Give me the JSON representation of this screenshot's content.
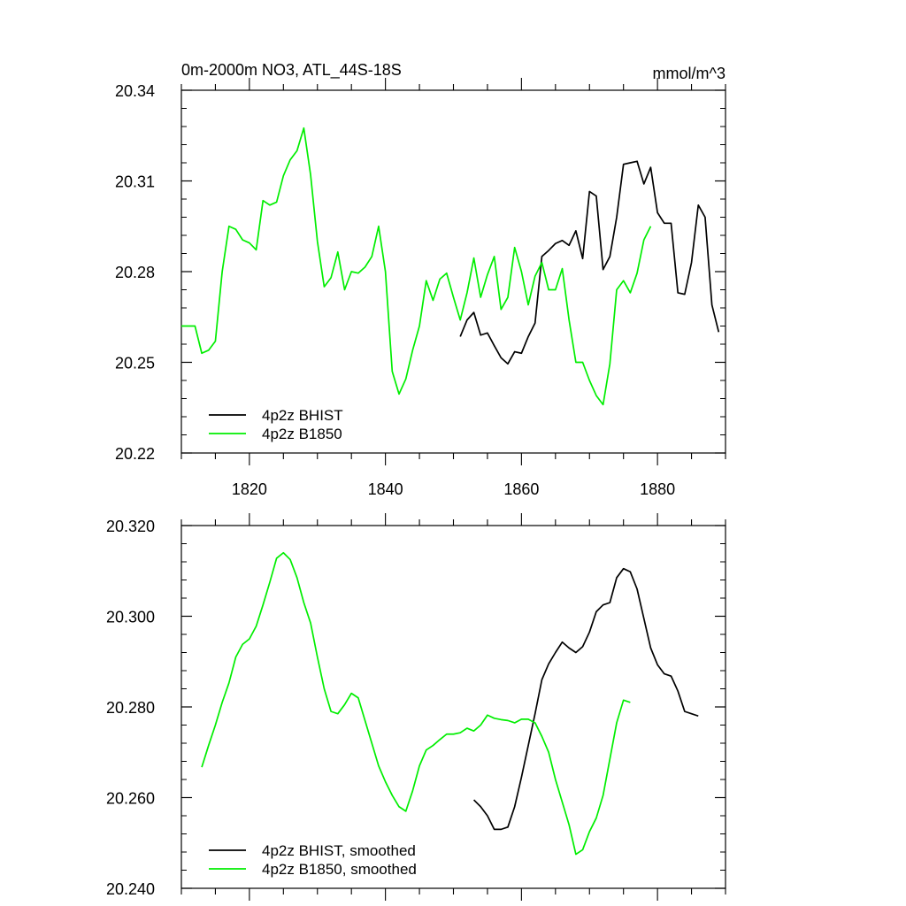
{
  "chart_data": [
    {
      "type": "line",
      "title": "0m-2000m NO3, ATL_44S-18S",
      "units": "mmol/m^3",
      "xlim": [
        1810,
        1890
      ],
      "ylim": [
        20.22,
        20.34
      ],
      "yticks": [
        "20.22",
        "20.25",
        "20.28",
        "20.31",
        "20.34"
      ],
      "xticks": [
        "1820",
        "1840",
        "1860",
        "1880"
      ],
      "legend_position": "bottom-left",
      "series": [
        {
          "name": "4p2z BHIST",
          "color": "#000000",
          "x": [
            1851,
            1852,
            1853,
            1854,
            1855,
            1856,
            1857,
            1858,
            1859,
            1860,
            1861,
            1862,
            1863,
            1864,
            1865,
            1866,
            1867,
            1868,
            1869,
            1870,
            1871,
            1872,
            1873,
            1874,
            1875,
            1876,
            1877,
            1878,
            1879,
            1880,
            1881,
            1882,
            1883,
            1884,
            1885,
            1886,
            1887,
            1888,
            1889
          ],
          "values": [
            20.2585,
            20.264,
            20.2665,
            20.259,
            20.2597,
            20.2555,
            20.2515,
            20.2495,
            20.2535,
            20.253,
            20.2585,
            20.263,
            20.285,
            20.287,
            20.2893,
            20.2903,
            20.2887,
            20.2935,
            20.2843,
            20.3065,
            20.305,
            20.2807,
            20.285,
            20.298,
            20.3155,
            20.316,
            20.3165,
            20.309,
            20.3145,
            20.2995,
            20.296,
            20.296,
            20.273,
            20.2725,
            20.283,
            20.302,
            20.298,
            20.269,
            20.26
          ]
        },
        {
          "name": "4p2z B1850",
          "color": "#00ee00",
          "x": [
            1810,
            1811,
            1812,
            1813,
            1814,
            1815,
            1816,
            1817,
            1818,
            1819,
            1820,
            1821,
            1822,
            1823,
            1824,
            1825,
            1826,
            1827,
            1828,
            1829,
            1830,
            1831,
            1832,
            1833,
            1834,
            1835,
            1836,
            1837,
            1838,
            1839,
            1840,
            1841,
            1842,
            1843,
            1844,
            1845,
            1846,
            1847,
            1848,
            1849,
            1850,
            1851,
            1852,
            1853,
            1854,
            1855,
            1856,
            1857,
            1858,
            1859,
            1860,
            1861,
            1862,
            1863,
            1864,
            1865,
            1866,
            1867,
            1868,
            1869,
            1870,
            1871,
            1872,
            1873,
            1874,
            1875,
            1876,
            1877,
            1878,
            1879
          ],
          "values": [
            20.262,
            20.262,
            20.262,
            20.253,
            20.254,
            20.257,
            20.28,
            20.295,
            20.294,
            20.2905,
            20.2895,
            20.2872,
            20.3035,
            20.302,
            20.303,
            20.3117,
            20.317,
            20.32,
            20.3275,
            20.312,
            20.29,
            20.275,
            20.278,
            20.2865,
            20.274,
            20.28,
            20.2795,
            20.2815,
            20.285,
            20.295,
            20.28,
            20.247,
            20.2395,
            20.2445,
            20.254,
            20.262,
            20.277,
            20.2705,
            20.2775,
            20.2795,
            20.2715,
            20.264,
            20.273,
            20.2845,
            20.2715,
            20.279,
            20.285,
            20.2675,
            20.2715,
            20.288,
            20.28,
            20.269,
            20.2785,
            20.283,
            20.274,
            20.274,
            20.281,
            20.264,
            20.25,
            20.25,
            20.244,
            20.239,
            20.236,
            20.2495,
            20.274,
            20.277,
            20.273,
            20.2795,
            20.2905,
            20.295
          ]
        }
      ]
    },
    {
      "type": "line",
      "title": "",
      "xlim": [
        1810,
        1890
      ],
      "ylim": [
        20.24,
        20.32
      ],
      "yticks": [
        "20.240",
        "20.260",
        "20.280",
        "20.300",
        "20.320"
      ],
      "xticks": [],
      "legend_position": "bottom-left",
      "series": [
        {
          "name": "4p2z BHIST, smoothed",
          "color": "#000000",
          "x": [
            1853,
            1854,
            1855,
            1856,
            1857,
            1858,
            1859,
            1860,
            1861,
            1862,
            1863,
            1864,
            1865,
            1866,
            1867,
            1868,
            1869,
            1870,
            1871,
            1872,
            1873,
            1874,
            1875,
            1876,
            1877,
            1878,
            1879,
            1880,
            1881,
            1882,
            1883,
            1884,
            1885,
            1886
          ],
          "values": [
            20.2595,
            20.258,
            20.256,
            20.253,
            20.253,
            20.2535,
            20.258,
            20.2645,
            20.2715,
            20.2785,
            20.286,
            20.2895,
            20.292,
            20.2943,
            20.293,
            20.292,
            20.2933,
            20.2965,
            20.301,
            20.3025,
            20.303,
            20.3085,
            20.3105,
            20.3098,
            20.306,
            20.2995,
            20.293,
            20.2893,
            20.2873,
            20.2868,
            20.2835,
            20.279,
            20.2785,
            20.278
          ]
        },
        {
          "name": "4p2z B1850, smoothed",
          "color": "#00ee00",
          "x": [
            1813,
            1814,
            1815,
            1816,
            1817,
            1818,
            1819,
            1820,
            1821,
            1822,
            1823,
            1824,
            1825,
            1826,
            1827,
            1828,
            1829,
            1830,
            1831,
            1832,
            1833,
            1834,
            1835,
            1836,
            1837,
            1838,
            1839,
            1840,
            1841,
            1842,
            1843,
            1844,
            1845,
            1846,
            1847,
            1848,
            1849,
            1850,
            1851,
            1852,
            1853,
            1854,
            1855,
            1856,
            1857,
            1858,
            1859,
            1860,
            1861,
            1862,
            1863,
            1864,
            1865,
            1866,
            1867,
            1868,
            1869,
            1870,
            1871,
            1872,
            1873,
            1874,
            1875,
            1876
          ],
          "values": [
            20.2667,
            20.2715,
            20.276,
            20.281,
            20.2853,
            20.291,
            20.2938,
            20.295,
            20.2978,
            20.3025,
            20.3075,
            20.3128,
            20.314,
            20.3125,
            20.3085,
            20.303,
            20.2985,
            20.291,
            20.284,
            20.279,
            20.2785,
            20.2805,
            20.283,
            20.282,
            20.277,
            20.272,
            20.267,
            20.2635,
            20.2605,
            20.258,
            20.257,
            20.2615,
            20.267,
            20.2705,
            20.2715,
            20.2728,
            20.274,
            20.274,
            20.2743,
            20.2753,
            20.2747,
            20.276,
            20.2782,
            20.2775,
            20.2772,
            20.277,
            20.2765,
            20.2773,
            20.2773,
            20.2765,
            20.2735,
            20.27,
            20.264,
            20.259,
            20.254,
            20.2475,
            20.2485,
            20.2525,
            20.2555,
            20.2605,
            20.2685,
            20.2765,
            20.2815,
            20.281
          ]
        }
      ]
    }
  ]
}
